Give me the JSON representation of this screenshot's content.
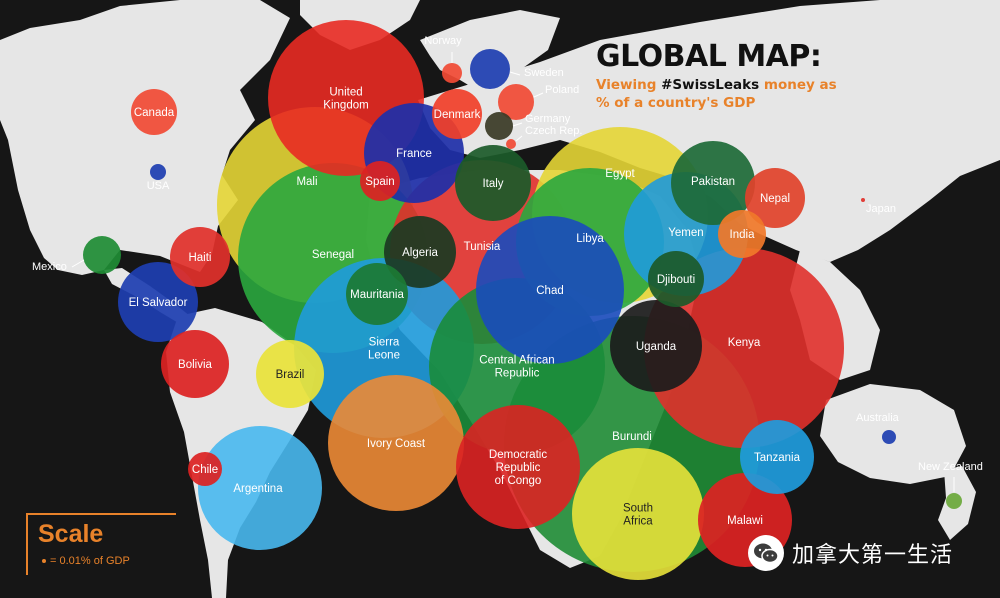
{
  "title": {
    "main": "GLOBAL MAP:",
    "sub_line1_prefix": "Viewing",
    "sub_line1_tag": "#SwissLeaks",
    "sub_line1_suffix": "money as",
    "sub_line2": "% of a country's GDP"
  },
  "scale": {
    "heading": "Scale",
    "legend": "= 0.01% of GDP"
  },
  "watermark": {
    "text": "加拿大第一生活",
    "icon": "wechat-icon"
  },
  "colors": {
    "land": "#e6e6e6",
    "ocean": "#161616",
    "accent": "#e8822a"
  },
  "countries": [
    {
      "name": "Burundi",
      "color": "#1f8c35"
    },
    {
      "name": "Kenya",
      "color": "#e0302b"
    },
    {
      "name": "Mali",
      "color": "#e4d535"
    },
    {
      "name": "Senegal",
      "color": "#2aa73e"
    },
    {
      "name": "Tunisia",
      "color": "#e0302b"
    },
    {
      "name": "Egypt",
      "color": "#e4d535"
    },
    {
      "name": "Libya",
      "color": "#2aa73e"
    },
    {
      "name": "Chad",
      "color": "#1a4bbd"
    },
    {
      "name": "United Kingdom",
      "color": "#e82a22"
    },
    {
      "name": "Yemen",
      "color": "#1f9bdc"
    },
    {
      "name": "Sierra Leone",
      "color": "#1f9bdc"
    },
    {
      "name": "Central African Republic",
      "color": "#1a8c3a"
    },
    {
      "name": "Argentina",
      "color": "#48b8ee"
    },
    {
      "name": "Ivory Coast",
      "color": "#ec8a35"
    },
    {
      "name": "Democratic Republic of Congo",
      "color": "#dc2222"
    },
    {
      "name": "South Africa",
      "color": "#e8e23a"
    },
    {
      "name": "France",
      "color": "#1f2fa8"
    },
    {
      "name": "El Salvador",
      "color": "#1e3eb0"
    },
    {
      "name": "Tanzania",
      "color": "#1f9bdc"
    },
    {
      "name": "Malawi",
      "color": "#dc2222"
    },
    {
      "name": "Uganda",
      "color": "#1c1c1c"
    },
    {
      "name": "Pakistan",
      "color": "#1e6a38"
    },
    {
      "name": "Italy",
      "color": "#1c5a2a"
    },
    {
      "name": "Bolivia",
      "color": "#dc2222"
    },
    {
      "name": "Brazil",
      "color": "#e8e23a"
    },
    {
      "name": "Algeria",
      "color": "#1c3a22"
    },
    {
      "name": "Nepal",
      "color": "#e0432b"
    },
    {
      "name": "Denmark",
      "color": "#f0402a"
    },
    {
      "name": "Mauritania",
      "color": "#1c7a34"
    },
    {
      "name": "Canada",
      "color": "#f04a35"
    },
    {
      "name": "Haiti",
      "color": "#e0302b"
    },
    {
      "name": "Djibouti",
      "color": "#1c5a2a"
    },
    {
      "name": "India",
      "color": "#f0782a"
    },
    {
      "name": "Sweden",
      "color": "#1e3eb0"
    },
    {
      "name": "Poland",
      "color": "#f04a35"
    },
    {
      "name": "Spain",
      "color": "#dc2222"
    },
    {
      "name": "Chile",
      "color": "#dc2222"
    },
    {
      "name": "Mexico",
      "color": "#1f8c35"
    },
    {
      "name": "Germany",
      "color": "#3a3a26"
    },
    {
      "name": "Norway",
      "color": "#f04a35"
    },
    {
      "name": "USA",
      "color": "#1e3eb0"
    },
    {
      "name": "Australia",
      "color": "#1e3eb0"
    },
    {
      "name": "New Zealand",
      "color": "#6aa83a"
    },
    {
      "name": "Czech Rep.",
      "color": "#f04a35"
    },
    {
      "name": "Japan",
      "color": "#e0302b"
    }
  ]
}
